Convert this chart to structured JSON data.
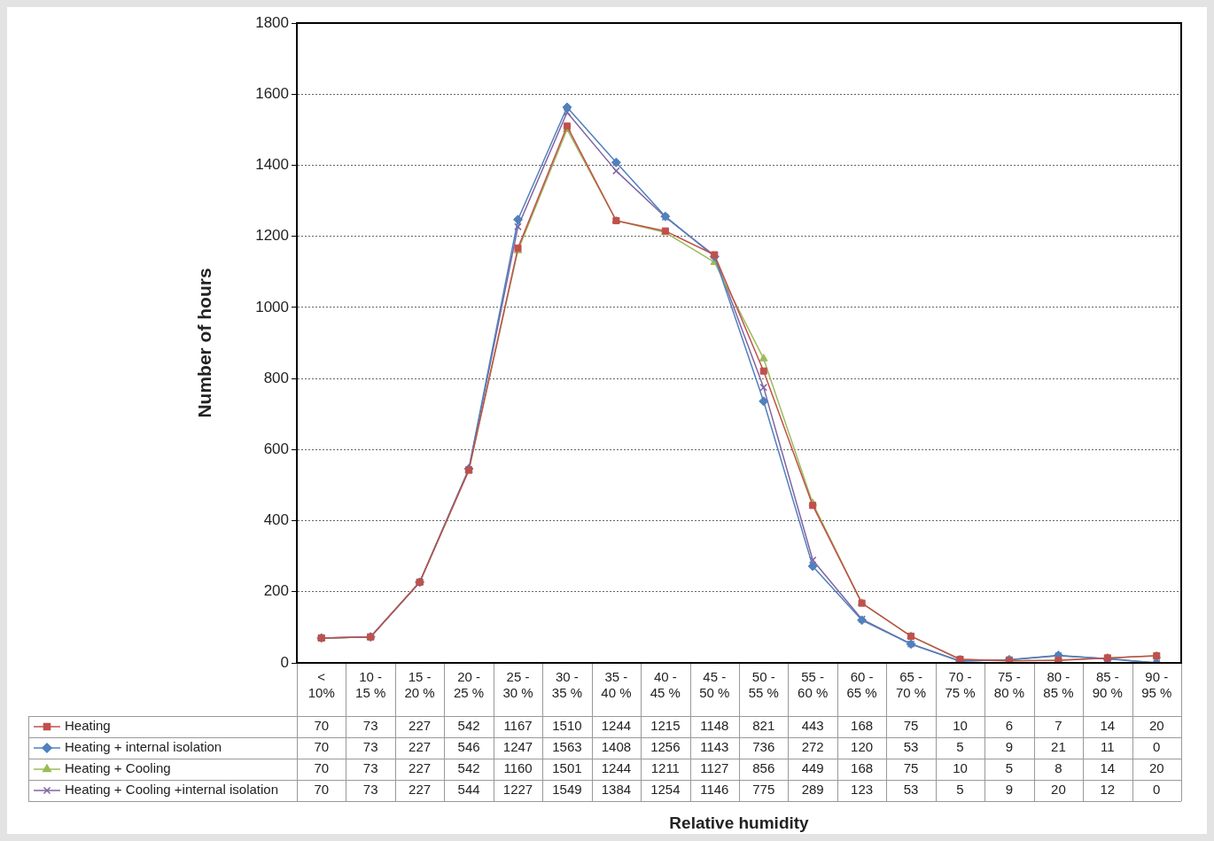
{
  "chart_data": {
    "type": "line",
    "ylabel": "Number of hours",
    "annotations": [
      "Relative humidity"
    ],
    "categories": [
      "< 10%",
      "10 - 15 %",
      "15 - 20 %",
      "20 - 25 %",
      "25 - 30 %",
      "30 - 35 %",
      "35 - 40 %",
      "40 - 45 %",
      "45 - 50 %",
      "50 - 55 %",
      "55 - 60 %",
      "60 - 65 %",
      "65 - 70 %",
      "70 - 75 %",
      "75 - 80 %",
      "80 - 85 %",
      "85 - 90 %",
      "90 - 95 %"
    ],
    "series": [
      {
        "name": "Heating",
        "color": "#c0504d",
        "marker": "square",
        "values": [
          70,
          73,
          227,
          542,
          1167,
          1510,
          1244,
          1215,
          1148,
          821,
          443,
          168,
          75,
          10,
          6,
          7,
          14,
          20
        ]
      },
      {
        "name": "Heating + internal isolation",
        "color": "#4f81bd",
        "marker": "diamond",
        "values": [
          70,
          73,
          227,
          546,
          1247,
          1563,
          1408,
          1256,
          1143,
          736,
          272,
          120,
          53,
          5,
          9,
          21,
          11,
          0
        ]
      },
      {
        "name": "Heating + Cooling",
        "color": "#9bbb59",
        "marker": "triangle",
        "values": [
          70,
          73,
          227,
          542,
          1160,
          1501,
          1244,
          1211,
          1127,
          856,
          449,
          168,
          75,
          10,
          5,
          8,
          14,
          20
        ]
      },
      {
        "name": "Heating + Cooling +internal isolation",
        "color": "#8064a2",
        "marker": "cross",
        "values": [
          70,
          73,
          227,
          544,
          1227,
          1549,
          1384,
          1254,
          1146,
          775,
          289,
          123,
          53,
          5,
          9,
          20,
          12,
          0
        ]
      }
    ],
    "ylim": [
      0,
      1800
    ],
    "yticks": [
      0,
      200,
      400,
      600,
      800,
      1000,
      1200,
      1400,
      1600,
      1800
    ],
    "grid": "y",
    "legend": "bottom",
    "data_labels": true,
    "line_style": "solid"
  }
}
